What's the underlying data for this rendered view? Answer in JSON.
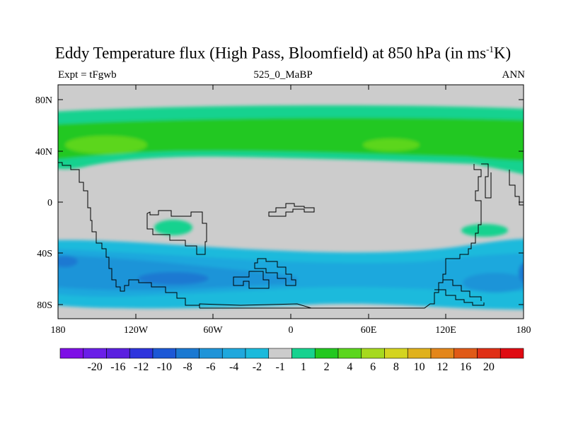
{
  "title": {
    "main": "Eddy Temperature flux (High Pass, Bloomfield) at 850 hPa (in ms",
    "sup": "-1",
    "tail": "K)"
  },
  "subtitle": {
    "left": "Expt = tFgwb",
    "center": "525_0_MaBP",
    "right": "ANN"
  },
  "map": {
    "lat_labels": [
      "80N",
      "40N",
      "0",
      "40S",
      "80S"
    ],
    "lon_labels": [
      "180",
      "120W",
      "60W",
      "0",
      "60E",
      "120E",
      "180"
    ]
  },
  "colorbar": {
    "colors": [
      "#7e0fe6",
      "#6a1ee8",
      "#5a1fe0",
      "#2e34dd",
      "#1c58d6",
      "#1a79d2",
      "#1f94d8",
      "#1fa8dd",
      "#1bbadc",
      "#cccccc",
      "#17d28f",
      "#22c820",
      "#5bd61d",
      "#a6d91f",
      "#d4d420",
      "#e0b11c",
      "#e3861a",
      "#e05a17",
      "#e02f15",
      "#e00a12"
    ],
    "labels": [
      "-20",
      "-16",
      "-12",
      "-10",
      "-8",
      "-6",
      "-4",
      "-2",
      "-1",
      "1",
      "2",
      "4",
      "6",
      "8",
      "10",
      "12",
      "16",
      "20"
    ]
  }
}
